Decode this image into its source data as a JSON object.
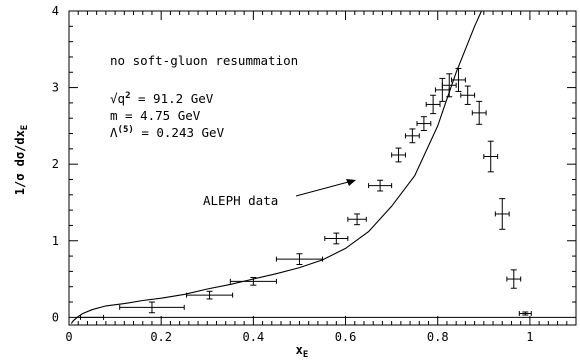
{
  "chart_data": {
    "type": "scatter",
    "xlabel_main": "x",
    "xlabel_sub": "E",
    "ylabel_main": "1/σ dσ/dx",
    "ylabel_sub": "E",
    "xlim": [
      0,
      1.1
    ],
    "ylim": [
      -0.1,
      4
    ],
    "x_ticks": [
      0,
      0.2,
      0.4,
      0.6,
      0.8,
      1
    ],
    "x_tick_labels": [
      "0",
      "0.2",
      "0.4",
      "0.6",
      "0.8",
      "1"
    ],
    "y_ticks": [
      0,
      1,
      2,
      3,
      4
    ],
    "y_tick_labels": [
      "0",
      "1",
      "2",
      "3",
      "4"
    ],
    "annotations": {
      "title": "no soft-gluon resummation",
      "q2_prefix": "√q",
      "q2_sup": "2",
      "q2_value": " = 91.2 GeV",
      "mass": "m = 4.75 GeV",
      "lambda_prefix": "Λ",
      "lambda_sup": "(5)",
      "lambda_value": " = 0.243 GeV",
      "data_label": "ALEPH data"
    },
    "series": [
      {
        "name": "ALEPH data",
        "points": [
          {
            "x": 0.05,
            "y": 0.0,
            "xerr": 0.025,
            "yerr": 0.0
          },
          {
            "x": 0.18,
            "y": 0.13,
            "xerr": 0.07,
            "yerr": 0.07
          },
          {
            "x": 0.305,
            "y": 0.29,
            "xerr": 0.05,
            "yerr": 0.05
          },
          {
            "x": 0.4,
            "y": 0.47,
            "xerr": 0.05,
            "yerr": 0.05
          },
          {
            "x": 0.5,
            "y": 0.76,
            "xerr": 0.05,
            "yerr": 0.07
          },
          {
            "x": 0.58,
            "y": 1.03,
            "xerr": 0.025,
            "yerr": 0.07
          },
          {
            "x": 0.625,
            "y": 1.28,
            "xerr": 0.02,
            "yerr": 0.07
          },
          {
            "x": 0.675,
            "y": 1.72,
            "xerr": 0.025,
            "yerr": 0.07
          },
          {
            "x": 0.715,
            "y": 2.12,
            "xerr": 0.015,
            "yerr": 0.09
          },
          {
            "x": 0.745,
            "y": 2.37,
            "xerr": 0.015,
            "yerr": 0.09
          },
          {
            "x": 0.77,
            "y": 2.53,
            "xerr": 0.015,
            "yerr": 0.09
          },
          {
            "x": 0.79,
            "y": 2.78,
            "xerr": 0.015,
            "yerr": 0.12
          },
          {
            "x": 0.81,
            "y": 2.97,
            "xerr": 0.015,
            "yerr": 0.15
          },
          {
            "x": 0.825,
            "y": 3.03,
            "xerr": 0.015,
            "yerr": 0.15
          },
          {
            "x": 0.845,
            "y": 3.1,
            "xerr": 0.015,
            "yerr": 0.15
          },
          {
            "x": 0.865,
            "y": 2.9,
            "xerr": 0.015,
            "yerr": 0.12
          },
          {
            "x": 0.89,
            "y": 2.67,
            "xerr": 0.015,
            "yerr": 0.15
          },
          {
            "x": 0.915,
            "y": 2.1,
            "xerr": 0.015,
            "yerr": 0.2
          },
          {
            "x": 0.94,
            "y": 1.35,
            "xerr": 0.015,
            "yerr": 0.2
          },
          {
            "x": 0.965,
            "y": 0.5,
            "xerr": 0.015,
            "yerr": 0.12
          },
          {
            "x": 0.99,
            "y": 0.05,
            "xerr": 0.013,
            "yerr": 0.02
          }
        ]
      },
      {
        "name": "no soft-gluon resummation",
        "type": "line",
        "x": [
          0.005,
          0.01,
          0.02,
          0.03,
          0.05,
          0.08,
          0.12,
          0.16,
          0.2,
          0.25,
          0.3,
          0.35,
          0.4,
          0.45,
          0.5,
          0.55,
          0.6,
          0.65,
          0.7,
          0.75,
          0.8,
          0.82,
          0.84,
          0.86,
          0.87,
          0.88,
          0.895
        ],
        "y": [
          -0.08,
          -0.04,
          0.01,
          0.05,
          0.1,
          0.15,
          0.18,
          0.22,
          0.25,
          0.3,
          0.37,
          0.43,
          0.5,
          0.57,
          0.65,
          0.75,
          0.9,
          1.12,
          1.45,
          1.85,
          2.5,
          2.85,
          3.2,
          3.5,
          3.65,
          3.8,
          4.0
        ]
      }
    ]
  }
}
